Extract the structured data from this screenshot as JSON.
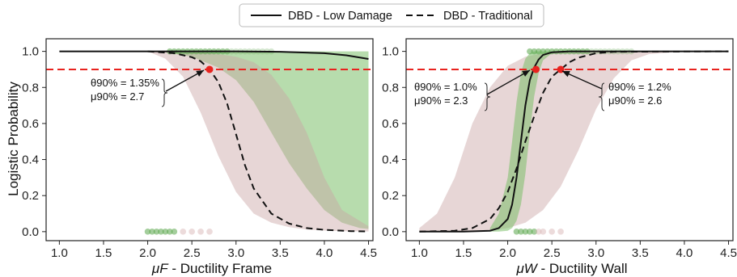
{
  "legend": [
    {
      "label": "DBD - Low Damage",
      "style": "solid"
    },
    {
      "label": "DBD - Traditional",
      "style": "dashed"
    }
  ],
  "colors": {
    "low_damage_band": "#7bbf6a",
    "traditional_band": "#c9a3a3",
    "threshold": "#e8231f",
    "marker": "#e8231f",
    "curve": "#111111",
    "green_points": "#5aa54a",
    "pink_points": "#d9b8b8"
  },
  "shared": {
    "ylabel": "Logistic Probability",
    "threshold": 0.9
  },
  "chart_data": [
    {
      "type": "line",
      "xlabel_symbol": "μF",
      "xlabel_text": " - Ductility Frame",
      "xlim": [
        0.85,
        4.55
      ],
      "ylim": [
        -0.05,
        1.07
      ],
      "xticks": [
        "1.0",
        "1.5",
        "2.0",
        "2.5",
        "3.0",
        "3.5",
        "4.0",
        "4.5"
      ],
      "yticks": [
        "0.0",
        "0.2",
        "0.4",
        "0.6",
        "0.8",
        "1.0"
      ],
      "threshold": 0.9,
      "series": [
        {
          "name": "DBD - Low Damage",
          "style": "solid",
          "x": [
            1.0,
            1.5,
            2.0,
            2.5,
            3.0,
            3.5,
            4.0,
            4.25,
            4.5
          ],
          "y": [
            1.0,
            1.0,
            1.0,
            1.0,
            1.0,
            0.998,
            0.99,
            0.978,
            0.958
          ]
        },
        {
          "name": "DBD - Traditional",
          "style": "dashed",
          "x": [
            2.0,
            2.3,
            2.5,
            2.6,
            2.7,
            2.8,
            2.9,
            3.0,
            3.1,
            3.2,
            3.4,
            3.6,
            3.8,
            4.0,
            4.3,
            4.5
          ],
          "y": [
            1.0,
            0.99,
            0.968,
            0.945,
            0.9,
            0.83,
            0.71,
            0.54,
            0.37,
            0.24,
            0.1,
            0.045,
            0.02,
            0.01,
            0.003,
            0.001
          ]
        }
      ],
      "bands": [
        {
          "series": "DBD - Low Damage",
          "x": [
            1.9,
            2.2,
            2.5,
            2.8,
            3.0,
            3.2,
            3.4,
            3.6,
            3.8,
            4.0,
            4.2,
            4.4,
            4.5
          ],
          "upper": [
            1.0,
            1.0,
            1.0,
            1.0,
            1.0,
            1.0,
            1.0,
            1.0,
            1.0,
            1.0,
            1.0,
            1.0,
            1.0
          ],
          "lower": [
            1.0,
            0.995,
            0.97,
            0.91,
            0.84,
            0.72,
            0.55,
            0.38,
            0.24,
            0.12,
            0.05,
            0.02,
            0.015
          ]
        },
        {
          "series": "DBD - Traditional",
          "x": [
            2.0,
            2.2,
            2.4,
            2.6,
            2.8,
            3.0,
            3.2,
            3.4,
            3.6,
            3.8,
            4.0,
            4.2,
            4.5
          ],
          "upper": [
            1.0,
            1.0,
            1.0,
            0.995,
            0.985,
            0.97,
            0.94,
            0.87,
            0.74,
            0.55,
            0.3,
            0.12,
            0.03
          ],
          "lower": [
            1.0,
            0.96,
            0.86,
            0.66,
            0.42,
            0.22,
            0.1,
            0.05,
            0.025,
            0.012,
            0.006,
            0.003,
            0.001
          ]
        }
      ],
      "points_top": [
        2.25,
        2.3,
        2.35,
        2.4,
        2.45,
        2.5,
        2.55,
        2.6,
        2.65,
        2.7,
        2.75,
        2.8,
        2.85,
        2.9,
        2.95,
        3.0,
        3.05,
        3.1,
        3.15,
        3.2,
        3.25,
        3.3,
        3.35,
        3.4
      ],
      "points_bottom": [
        2.0,
        2.05,
        2.1,
        2.15,
        2.2,
        2.25,
        2.3,
        2.4,
        2.5,
        2.6,
        2.7
      ],
      "marker": {
        "x": 2.7,
        "y": 0.9
      },
      "annotations": [
        {
          "lines": [
            "θ90% = 1.35%",
            "μ90% = 2.7"
          ]
        }
      ]
    },
    {
      "type": "line",
      "xlabel_symbol": "μW",
      "xlabel_text": " - Ductility Wall",
      "xlim": [
        0.85,
        4.55
      ],
      "ylim": [
        -0.05,
        1.07
      ],
      "xticks": [
        "1.0",
        "1.5",
        "2.0",
        "2.5",
        "3.0",
        "3.5",
        "4.0",
        "4.5"
      ],
      "yticks": [
        "0.0",
        "0.2",
        "0.4",
        "0.6",
        "0.8",
        "1.0"
      ],
      "threshold": 0.9,
      "series": [
        {
          "name": "DBD - Low Damage",
          "style": "solid",
          "x": [
            1.0,
            1.5,
            1.8,
            1.9,
            2.0,
            2.05,
            2.1,
            2.15,
            2.2,
            2.25,
            2.3,
            2.35,
            2.4,
            2.5,
            2.7,
            3.0,
            4.5
          ],
          "y": [
            0.0,
            0.0,
            0.005,
            0.02,
            0.07,
            0.15,
            0.3,
            0.5,
            0.7,
            0.84,
            0.91,
            0.955,
            0.98,
            0.995,
            1.0,
            1.0,
            1.0
          ]
        },
        {
          "name": "DBD - Traditional",
          "style": "dashed",
          "x": [
            1.0,
            1.4,
            1.6,
            1.8,
            1.9,
            2.0,
            2.1,
            2.2,
            2.3,
            2.4,
            2.5,
            2.6,
            2.7,
            2.8,
            3.0,
            3.2,
            4.5
          ],
          "y": [
            0.0,
            0.005,
            0.02,
            0.07,
            0.13,
            0.22,
            0.35,
            0.5,
            0.64,
            0.77,
            0.86,
            0.9,
            0.94,
            0.965,
            0.99,
            0.998,
            1.0
          ]
        }
      ],
      "bands": [
        {
          "series": "DBD - Traditional",
          "x": [
            1.0,
            1.2,
            1.4,
            1.6,
            1.8,
            2.0,
            2.2,
            2.4,
            2.6,
            2.8,
            3.0,
            3.2,
            3.4,
            3.6,
            4.0
          ],
          "upper": [
            0.02,
            0.1,
            0.3,
            0.6,
            0.8,
            0.92,
            0.97,
            0.99,
            1.0,
            1.0,
            1.0,
            1.0,
            1.0,
            1.0,
            1.0
          ],
          "lower": [
            0.0,
            0.0,
            0.0,
            0.0,
            0.005,
            0.02,
            0.05,
            0.12,
            0.25,
            0.45,
            0.68,
            0.85,
            0.95,
            0.985,
            1.0
          ]
        },
        {
          "series": "DBD - Low Damage",
          "x": [
            1.8,
            1.9,
            2.0,
            2.05,
            2.1,
            2.15,
            2.2,
            2.25,
            2.3,
            2.35,
            2.4,
            2.5,
            2.6,
            2.7
          ],
          "upper": [
            0.02,
            0.1,
            0.3,
            0.5,
            0.72,
            0.88,
            0.96,
            0.99,
            1.0,
            1.0,
            1.0,
            1.0,
            1.0,
            1.0
          ],
          "lower": [
            0.0,
            0.0,
            0.005,
            0.02,
            0.06,
            0.15,
            0.32,
            0.55,
            0.75,
            0.88,
            0.95,
            0.99,
            1.0,
            1.0
          ]
        }
      ],
      "points_top": [
        2.25,
        2.3,
        2.35,
        2.4,
        2.45,
        2.5,
        2.55,
        2.6,
        2.65,
        2.7,
        2.75,
        2.8,
        2.85,
        2.9,
        2.95,
        3.0,
        3.05,
        3.1,
        3.15,
        3.2,
        3.25,
        3.3,
        3.35,
        3.4
      ],
      "points_bottom": [
        2.1,
        2.15,
        2.2,
        2.25,
        2.3,
        2.35,
        2.4,
        2.5,
        2.6
      ],
      "markers": [
        {
          "x": 2.32,
          "y": 0.9
        },
        {
          "x": 2.6,
          "y": 0.9
        }
      ],
      "annotations": [
        {
          "lines": [
            "θ90% = 1.0%",
            "μ90% = 2.3"
          ]
        },
        {
          "lines": [
            "θ90% = 1.2%",
            "μ90% = 2.6"
          ]
        }
      ]
    }
  ]
}
